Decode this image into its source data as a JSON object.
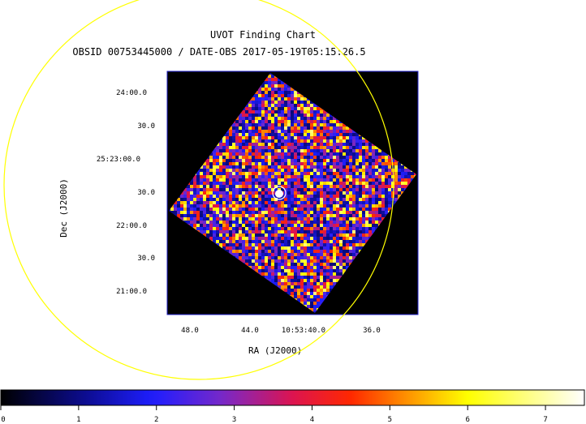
{
  "chart_data": {
    "type": "heatmap",
    "title": "UVOT Finding Chart",
    "subtitle": "OBSID 00753445000 / DATE-OBS 2017-05-19T05:15:26.5",
    "xlabel": "RA (J2000)",
    "ylabel": "Dec (J2000)",
    "x_ticks": [
      "48.0",
      "44.0",
      "10:53:40.0",
      "36.0"
    ],
    "y_ticks": [
      "24:00.0",
      "30.0",
      "25:23:00.0",
      "30.0",
      "22:00.0",
      "30.0",
      "21:00.0"
    ],
    "colorbar": {
      "ticks": [
        "0",
        "1",
        "2",
        "3",
        "4",
        "5",
        "6",
        "7"
      ],
      "range": [
        0,
        7.5
      ]
    },
    "grid": false,
    "colors": {
      "frame": "#2222cc",
      "circle": "#ffff00",
      "source_marker": "#ffffff",
      "background": "#000000"
    }
  }
}
